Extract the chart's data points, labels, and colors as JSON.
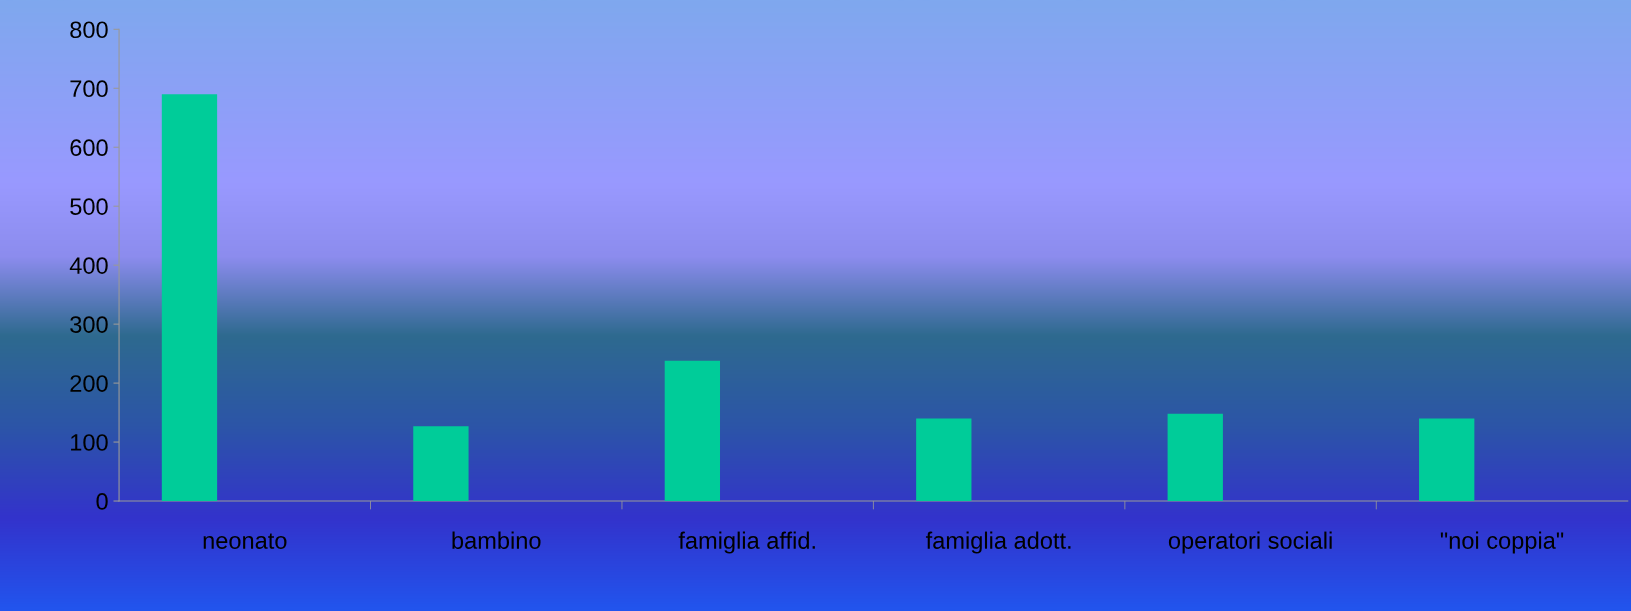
{
  "chart_data": {
    "type": "bar",
    "categories": [
      "neonato",
      "bambino",
      "famiglia affid.",
      "famiglia adott.",
      "operatori sociali",
      "\"noi coppia\""
    ],
    "values": [
      690,
      127,
      238,
      140,
      148,
      140
    ],
    "color": "#00cc99",
    "ylim": [
      0,
      800
    ],
    "yticks": [
      0,
      100,
      200,
      300,
      400,
      500,
      600,
      700,
      800
    ],
    "grid": false,
    "legend": false
  }
}
